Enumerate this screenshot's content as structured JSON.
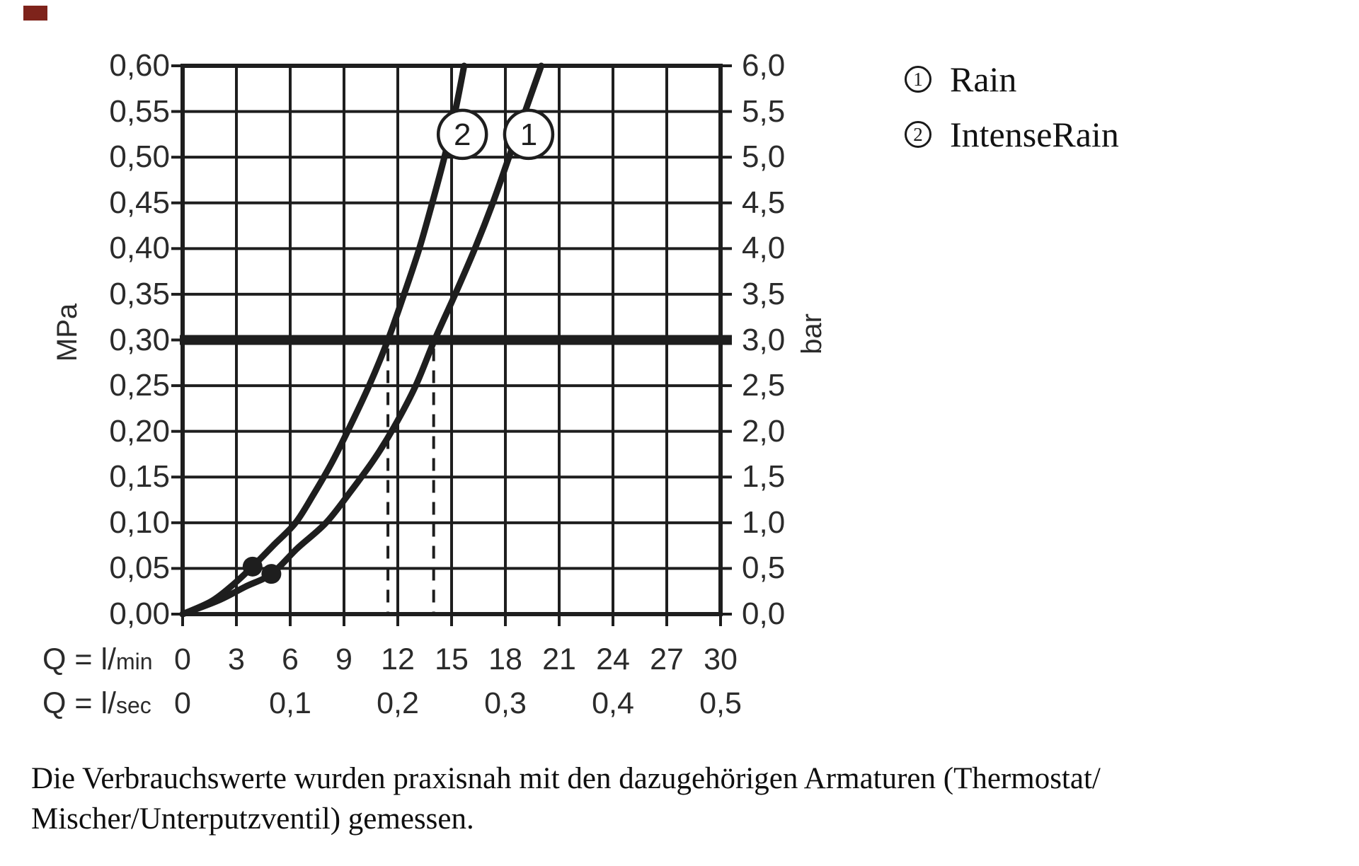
{
  "corner_marker": {
    "color": "#7e231b"
  },
  "style": {
    "ink": "#1e1e1e",
    "background": "#ffffff"
  },
  "chart_data": {
    "type": "line",
    "title": "",
    "x_axis": {
      "row1": {
        "prefix": "Q = l/",
        "unit": "min",
        "ticks": [
          "0",
          "3",
          "6",
          "9",
          "12",
          "15",
          "18",
          "21",
          "24",
          "27",
          "30"
        ],
        "tick_values_lmin": [
          0,
          3,
          6,
          9,
          12,
          15,
          18,
          21,
          24,
          27,
          30
        ]
      },
      "row2": {
        "prefix": "Q = l/",
        "unit": "sec",
        "ticks": [
          "0",
          "0,1",
          "0,2",
          "0,3",
          "0,4",
          "0,5"
        ],
        "tick_values_lmin": [
          0,
          6,
          12,
          18,
          24,
          30
        ]
      },
      "range_lmin": [
        0,
        30
      ],
      "gridline_step_lmin": 3
    },
    "y_axis_left": {
      "unit": "MPa",
      "ticks": [
        "0,60",
        "0,55",
        "0,50",
        "0,45",
        "0,40",
        "0,35",
        "0,30",
        "0,25",
        "0,20",
        "0,15",
        "0,10",
        "0,05",
        "0,00"
      ],
      "range_mpa": [
        0,
        0.6
      ],
      "gridline_step_mpa": 0.05
    },
    "y_axis_right": {
      "unit": "bar",
      "ticks": [
        "6,0",
        "5,5",
        "5,0",
        "4,5",
        "4,0",
        "3,5",
        "3,0",
        "2,5",
        "2,0",
        "1,5",
        "1,0",
        "0,5",
        "0,0"
      ],
      "range_bar": [
        0,
        6.0
      ]
    },
    "reference_line_mpa": 0.3,
    "dashed_lines_lmin": [
      11.45,
      14.0
    ],
    "series": [
      {
        "id": "1",
        "name": "Rain",
        "flow_at_3bar_lmin": 14.0,
        "points_lmin_mpa": [
          [
            0,
            0
          ],
          [
            2.0,
            0.015
          ],
          [
            3.5,
            0.03
          ],
          [
            4.95,
            0.044
          ],
          [
            6.4,
            0.072
          ],
          [
            8.0,
            0.1
          ],
          [
            9.4,
            0.135
          ],
          [
            10.7,
            0.17
          ],
          [
            11.8,
            0.205
          ],
          [
            13.0,
            0.25
          ],
          [
            14.05,
            0.3
          ],
          [
            15.2,
            0.35
          ],
          [
            16.3,
            0.4
          ],
          [
            17.3,
            0.45
          ],
          [
            18.2,
            0.5
          ],
          [
            19.1,
            0.55
          ],
          [
            20.0,
            0.6
          ]
        ],
        "dot_marker_lmin_mpa": [
          4.95,
          0.044
        ],
        "label_circle_lmin_mpa": [
          19.3,
          0.525
        ]
      },
      {
        "id": "2",
        "name": "IntenseRain",
        "flow_at_3bar_lmin": 11.45,
        "points_lmin_mpa": [
          [
            0,
            0
          ],
          [
            1.6,
            0.014
          ],
          [
            2.8,
            0.032
          ],
          [
            3.9,
            0.052
          ],
          [
            5.1,
            0.076
          ],
          [
            6.3,
            0.1
          ],
          [
            7.3,
            0.131
          ],
          [
            8.3,
            0.165
          ],
          [
            9.2,
            0.2
          ],
          [
            10.4,
            0.25
          ],
          [
            11.45,
            0.3
          ],
          [
            12.35,
            0.35
          ],
          [
            13.2,
            0.4
          ],
          [
            13.95,
            0.452
          ],
          [
            14.6,
            0.5
          ],
          [
            15.2,
            0.55
          ],
          [
            15.7,
            0.6
          ]
        ],
        "dot_marker_lmin_mpa": [
          3.9,
          0.052
        ],
        "label_circle_lmin_mpa": [
          15.6,
          0.525
        ]
      }
    ],
    "grid": true,
    "legend_position": "top-right"
  },
  "legend": {
    "items": [
      {
        "symbol": "1",
        "label": "Rain"
      },
      {
        "symbol": "2",
        "label": "IntenseRain"
      }
    ]
  },
  "footnote": {
    "line1": "Die Verbrauchswerte wurden praxisnah mit den dazugehörigen Armaturen (Thermostat/",
    "line2": "Mischer/Unterputzventil) gemessen."
  }
}
